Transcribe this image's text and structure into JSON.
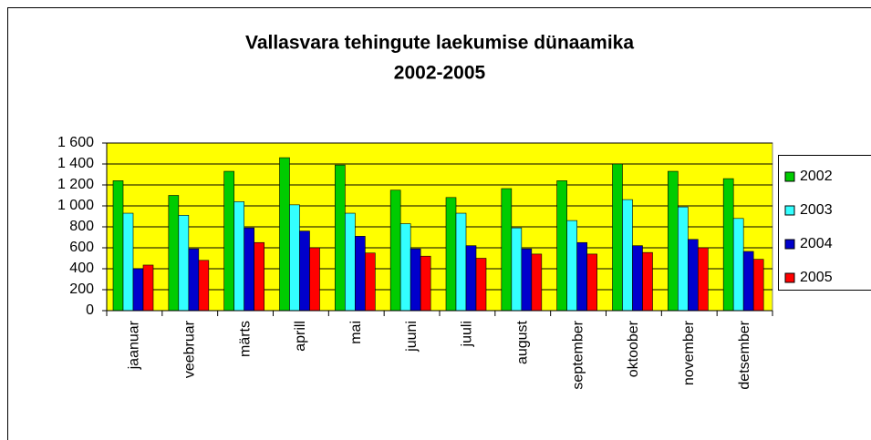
{
  "chart_data": {
    "type": "bar",
    "title_lines": [
      "Vallasvara tehingute laekumise dünaamika",
      "2002-2005"
    ],
    "categories": [
      "jaanuar",
      "veebruar",
      "märts",
      "aprill",
      "mai",
      "juuni",
      "juuli",
      "august",
      "september",
      "oktoober",
      "november",
      "detsember"
    ],
    "series": [
      {
        "name": "2002",
        "color": "#00cc00",
        "values": [
          1240,
          1100,
          1330,
          1460,
          1390,
          1150,
          1080,
          1165,
          1240,
          1400,
          1330,
          1260
        ]
      },
      {
        "name": "2003",
        "color": "#33ffff",
        "values": [
          930,
          910,
          1040,
          1010,
          930,
          830,
          930,
          790,
          860,
          1060,
          990,
          880
        ]
      },
      {
        "name": "2004",
        "color": "#0000cc",
        "values": [
          400,
          590,
          790,
          760,
          710,
          590,
          620,
          590,
          650,
          620,
          680,
          565
        ]
      },
      {
        "name": "2005",
        "color": "#ff0000",
        "values": [
          435,
          480,
          650,
          600,
          550,
          520,
          500,
          540,
          540,
          555,
          600,
          490
        ]
      }
    ],
    "ylim": [
      0,
      1600
    ],
    "yticks": [
      0,
      200,
      400,
      600,
      800,
      {
        "value": 1000,
        "label": "1 000"
      },
      {
        "value": 1200,
        "label": "1 200"
      },
      {
        "value": 1400,
        "label": "1 400"
      },
      {
        "value": 1600,
        "label": "1 600"
      }
    ],
    "grid": true,
    "plot_background": "#ffff00",
    "legend": "right"
  }
}
